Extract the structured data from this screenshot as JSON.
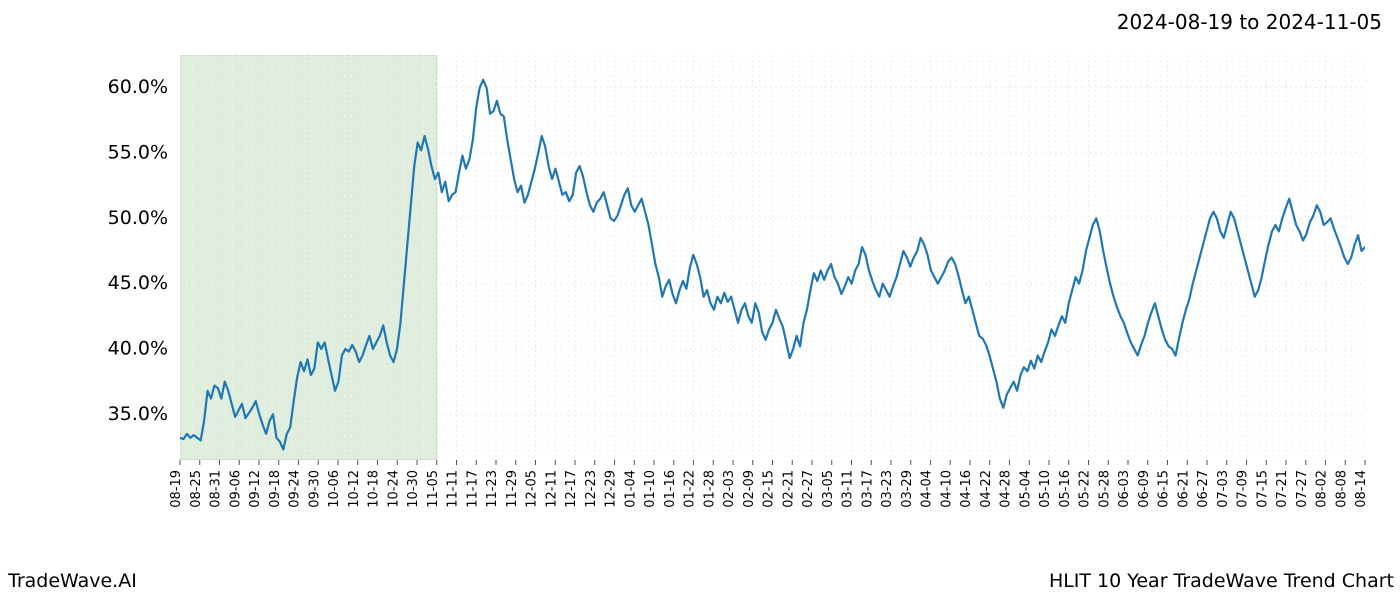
{
  "header": {
    "date_range": "2024-08-19 to 2024-11-05"
  },
  "footer": {
    "brand": "TradeWave.AI",
    "title": "HLIT 10 Year TradeWave Trend Chart"
  },
  "chart": {
    "type": "line",
    "background_color": "#ffffff",
    "line_color": "#1f77b4",
    "line_width": 2.2,
    "grid_color": "#e9e9e9",
    "minor_grid_color": "#f3f3f3",
    "shade": {
      "fill": "#dfeedc",
      "stroke": "#b7d3b1",
      "x_start": "08-19",
      "x_end": "11-05"
    },
    "yaxis": {
      "min": 31.5,
      "max": 62.5,
      "ticks": [
        35,
        40,
        45,
        50,
        55,
        60
      ],
      "tick_labels": [
        "35.0%",
        "40.0%",
        "45.0%",
        "50.0%",
        "55.0%",
        "60.0%"
      ],
      "label_fontsize": 19
    },
    "xaxis": {
      "ticks": [
        "08-19",
        "08-25",
        "08-31",
        "09-06",
        "09-12",
        "09-18",
        "09-24",
        "09-30",
        "10-06",
        "10-12",
        "10-18",
        "10-24",
        "10-30",
        "11-05",
        "11-11",
        "11-17",
        "11-23",
        "11-29",
        "12-05",
        "12-11",
        "12-17",
        "12-23",
        "12-29",
        "01-04",
        "01-10",
        "01-16",
        "01-22",
        "01-28",
        "02-03",
        "02-09",
        "02-15",
        "02-21",
        "02-27",
        "03-05",
        "03-11",
        "03-17",
        "03-23",
        "03-29",
        "04-04",
        "04-10",
        "04-16",
        "04-22",
        "04-28",
        "05-04",
        "05-10",
        "05-16",
        "05-22",
        "05-28",
        "06-03",
        "06-09",
        "06-15",
        "06-21",
        "06-27",
        "07-03",
        "07-09",
        "07-15",
        "07-21",
        "07-27",
        "08-02",
        "08-08",
        "08-14"
      ],
      "label_fontsize": 13,
      "label_rotation": 90
    },
    "series": {
      "name": "HLIT",
      "values": [
        33.2,
        33.1,
        33.5,
        33.2,
        33.4,
        33.2,
        33.0,
        34.5,
        36.8,
        36.2,
        37.2,
        37.0,
        36.2,
        37.5,
        36.8,
        35.8,
        34.8,
        35.3,
        35.8,
        34.7,
        35.1,
        35.5,
        36.0,
        35.0,
        34.2,
        33.5,
        34.5,
        35.0,
        33.2,
        32.9,
        32.3,
        33.5,
        34.0,
        36.0,
        37.8,
        39.0,
        38.3,
        39.2,
        38.0,
        38.5,
        40.5,
        40.0,
        40.5,
        39.2,
        38.0,
        36.8,
        37.5,
        39.5,
        40.0,
        39.8,
        40.3,
        39.8,
        39.0,
        39.5,
        40.3,
        41.0,
        40.0,
        40.5,
        41.0,
        41.8,
        40.5,
        39.5,
        39.0,
        40.0,
        42.0,
        45.0,
        48.0,
        51.0,
        54.0,
        55.8,
        55.2,
        56.3,
        55.3,
        54.0,
        53.0,
        53.5,
        52.0,
        52.8,
        51.3,
        51.8,
        52.0,
        53.5,
        54.8,
        53.8,
        54.5,
        56.0,
        58.5,
        60.0,
        60.6,
        60.0,
        58.0,
        58.2,
        59.0,
        58.0,
        57.8,
        56.0,
        54.5,
        53.0,
        52.0,
        52.5,
        51.2,
        51.8,
        52.8,
        53.8,
        55.0,
        56.3,
        55.5,
        54.0,
        53.0,
        53.8,
        52.8,
        51.8,
        52.0,
        51.3,
        51.8,
        53.5,
        54.0,
        53.2,
        52.0,
        51.0,
        50.5,
        51.2,
        51.5,
        52.0,
        51.0,
        50.0,
        49.8,
        50.2,
        51.0,
        51.8,
        52.3,
        51.0,
        50.5,
        51.0,
        51.5,
        50.5,
        49.5,
        48.0,
        46.5,
        45.5,
        44.0,
        44.8,
        45.3,
        44.2,
        43.5,
        44.5,
        45.2,
        44.6,
        46.2,
        47.2,
        46.5,
        45.5,
        44.0,
        44.5,
        43.5,
        43.0,
        44.0,
        43.5,
        44.3,
        43.6,
        44.0,
        43.0,
        42.0,
        43.0,
        43.5,
        42.5,
        42.0,
        43.5,
        42.8,
        41.3,
        40.7,
        41.5,
        42.0,
        43.0,
        42.3,
        41.7,
        40.5,
        39.3,
        40.0,
        41.0,
        40.2,
        42.0,
        43.0,
        44.5,
        45.8,
        45.2,
        46.0,
        45.3,
        46.0,
        46.5,
        45.5,
        45.0,
        44.2,
        44.8,
        45.5,
        45.0,
        46.0,
        46.5,
        47.8,
        47.2,
        46.0,
        45.2,
        44.5,
        44.0,
        45.0,
        44.5,
        44.0,
        44.8,
        45.5,
        46.5,
        47.5,
        47.0,
        46.3,
        47.0,
        47.5,
        48.5,
        48.0,
        47.2,
        46.0,
        45.5,
        45.0,
        45.5,
        46.0,
        46.7,
        47.0,
        46.5,
        45.6,
        44.5,
        43.5,
        44.0,
        43.0,
        42.0,
        41.0,
        40.8,
        40.3,
        39.5,
        38.5,
        37.5,
        36.2,
        35.5,
        36.5,
        37.0,
        37.5,
        36.8,
        38.0,
        38.6,
        38.3,
        39.1,
        38.5,
        39.5,
        39.0,
        39.8,
        40.5,
        41.5,
        41.0,
        41.8,
        42.5,
        42.0,
        43.5,
        44.5,
        45.5,
        45.0,
        46.0,
        47.5,
        48.5,
        49.5,
        50.0,
        49.0,
        47.5,
        46.2,
        45.0,
        44.0,
        43.2,
        42.5,
        42.0,
        41.2,
        40.5,
        40.0,
        39.5,
        40.3,
        41.0,
        42.0,
        42.8,
        43.5,
        42.5,
        41.5,
        40.7,
        40.2,
        40.0,
        39.5,
        40.8,
        42.0,
        43.0,
        43.8,
        45.0,
        46.0,
        47.0,
        48.0,
        49.0,
        50.0,
        50.5,
        50.0,
        49.0,
        48.5,
        49.5,
        50.5,
        50.0,
        49.0,
        48.0,
        47.0,
        46.0,
        45.0,
        44.0,
        44.5,
        45.5,
        46.8,
        48.0,
        49.0,
        49.5,
        49.0,
        50.0,
        50.8,
        51.5,
        50.5,
        49.5,
        49.0,
        48.3,
        48.8,
        49.7,
        50.2,
        51.0,
        50.5,
        49.5,
        49.7,
        50.0,
        49.2,
        48.5,
        47.8,
        47.0,
        46.5,
        47.0,
        48.0,
        48.7,
        47.5,
        47.8
      ]
    }
  }
}
